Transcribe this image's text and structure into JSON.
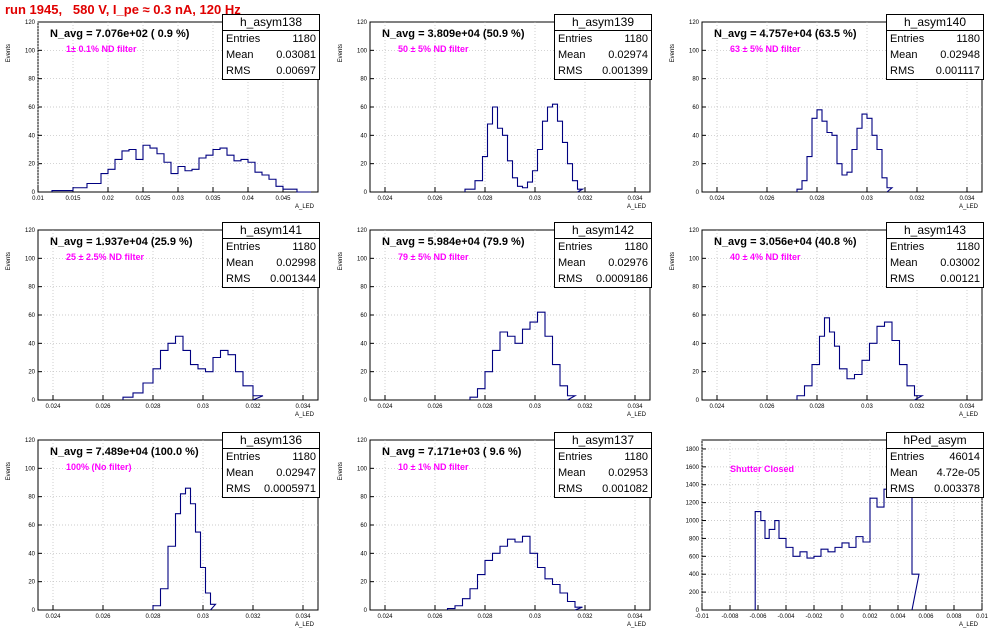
{
  "page": {
    "title": "run 1945,   580 V, I_pe ≈ 0.3 nA, 120 Hz",
    "colors": {
      "title": "#e00000",
      "hist": "#000080",
      "filter": "#ff00ff"
    }
  },
  "chart_data": [
    {
      "type": "histogram",
      "name": "h_asym138",
      "navg": "N_avg = 7.076e+02 ( 0.9 %)",
      "filter": "1± 0.1% ND filter",
      "stats": {
        "entries": "1180",
        "mean": "0.03081",
        "rms": "0.00697"
      },
      "xlim": [
        0.01,
        0.05
      ],
      "ylim": [
        0,
        120
      ],
      "xticks": [
        "0.01",
        "0.015",
        "0.02",
        "0.025",
        "0.03",
        "0.035",
        "0.04",
        "0.045"
      ],
      "xtick_values": [
        0.01,
        0.015,
        0.02,
        0.025,
        0.03,
        0.035,
        0.04,
        0.045
      ],
      "yticks": [
        "0",
        "20",
        "40",
        "60",
        "80",
        "100",
        "120"
      ],
      "ylabel": "Events",
      "xlabel": "A_LED",
      "bins": [
        [
          0.012,
          1
        ],
        [
          0.015,
          3
        ],
        [
          0.017,
          6
        ],
        [
          0.019,
          13
        ],
        [
          0.02,
          16
        ],
        [
          0.021,
          23
        ],
        [
          0.022,
          29
        ],
        [
          0.023,
          30
        ],
        [
          0.024,
          23
        ],
        [
          0.025,
          33
        ],
        [
          0.026,
          31
        ],
        [
          0.027,
          27
        ],
        [
          0.028,
          21
        ],
        [
          0.029,
          13
        ],
        [
          0.03,
          18
        ],
        [
          0.031,
          15
        ],
        [
          0.032,
          16
        ],
        [
          0.033,
          24
        ],
        [
          0.034,
          26
        ],
        [
          0.035,
          30
        ],
        [
          0.036,
          31
        ],
        [
          0.037,
          26
        ],
        [
          0.038,
          22
        ],
        [
          0.039,
          23
        ],
        [
          0.04,
          21
        ],
        [
          0.041,
          14
        ],
        [
          0.042,
          12
        ],
        [
          0.043,
          9
        ],
        [
          0.044,
          4
        ],
        [
          0.045,
          2
        ],
        [
          0.047,
          0
        ]
      ]
    },
    {
      "type": "histogram",
      "name": "h_asym139",
      "navg": "N_avg = 3.809e+04 (50.9 %)",
      "filter": "50 ± 5% ND filter",
      "stats": {
        "entries": "1180",
        "mean": "0.02974",
        "rms": "0.001399"
      },
      "xlim": [
        0.0234,
        0.0346
      ],
      "ylim": [
        0,
        120
      ],
      "xticks": [
        "0.024",
        "0.026",
        "0.028",
        "0.03",
        "0.032",
        "0.034"
      ],
      "xtick_values": [
        0.024,
        0.026,
        0.028,
        0.03,
        0.032,
        0.034
      ],
      "yticks": [
        "0",
        "20",
        "40",
        "60",
        "80",
        "100",
        "120"
      ],
      "ylabel": "Events",
      "xlabel": "A_LED",
      "bins": [
        [
          0.0272,
          2
        ],
        [
          0.0276,
          8
        ],
        [
          0.0279,
          25
        ],
        [
          0.0281,
          48
        ],
        [
          0.0283,
          60
        ],
        [
          0.0285,
          45
        ],
        [
          0.0287,
          40
        ],
        [
          0.0289,
          22
        ],
        [
          0.0291,
          10
        ],
        [
          0.0293,
          4
        ],
        [
          0.0295,
          3
        ],
        [
          0.0297,
          7
        ],
        [
          0.0299,
          15
        ],
        [
          0.0301,
          30
        ],
        [
          0.0303,
          50
        ],
        [
          0.0305,
          60
        ],
        [
          0.0307,
          62
        ],
        [
          0.0309,
          50
        ],
        [
          0.0311,
          35
        ],
        [
          0.0313,
          20
        ],
        [
          0.0315,
          8
        ],
        [
          0.0317,
          2
        ]
      ]
    },
    {
      "type": "histogram",
      "name": "h_asym140",
      "navg": "N_avg = 4.757e+04 (63.5 %)",
      "filter": "63 ± 5% ND filter",
      "stats": {
        "entries": "1180",
        "mean": "0.02948",
        "rms": "0.001117"
      },
      "xlim": [
        0.0234,
        0.0346
      ],
      "ylim": [
        0,
        120
      ],
      "xticks": [
        "0.024",
        "0.026",
        "0.028",
        "0.03",
        "0.032",
        "0.034"
      ],
      "xtick_values": [
        0.024,
        0.026,
        0.028,
        0.03,
        0.032,
        0.034
      ],
      "yticks": [
        "0",
        "20",
        "40",
        "60",
        "80",
        "100",
        "120"
      ],
      "ylabel": "Events",
      "xlabel": "A_LED",
      "bins": [
        [
          0.0272,
          2
        ],
        [
          0.0274,
          8
        ],
        [
          0.0276,
          25
        ],
        [
          0.0278,
          52
        ],
        [
          0.028,
          58
        ],
        [
          0.0282,
          50
        ],
        [
          0.0284,
          42
        ],
        [
          0.0286,
          40
        ],
        [
          0.0288,
          20
        ],
        [
          0.029,
          12
        ],
        [
          0.0292,
          14
        ],
        [
          0.0294,
          30
        ],
        [
          0.0296,
          45
        ],
        [
          0.0298,
          55
        ],
        [
          0.03,
          52
        ],
        [
          0.0302,
          40
        ],
        [
          0.0304,
          30
        ],
        [
          0.0306,
          10
        ],
        [
          0.0308,
          3
        ]
      ]
    },
    {
      "type": "histogram",
      "name": "h_asym141",
      "navg": "N_avg = 1.937e+04 (25.9 %)",
      "filter": "25 ± 2.5% ND filter",
      "stats": {
        "entries": "1180",
        "mean": "0.02998",
        "rms": "0.001344"
      },
      "xlim": [
        0.0234,
        0.0346
      ],
      "ylim": [
        0,
        120
      ],
      "xticks": [
        "0.024",
        "0.026",
        "0.028",
        "0.03",
        "0.032",
        "0.034"
      ],
      "xtick_values": [
        0.024,
        0.026,
        0.028,
        0.03,
        0.032,
        0.034
      ],
      "yticks": [
        "0",
        "20",
        "40",
        "60",
        "80",
        "100",
        "120"
      ],
      "ylabel": "Events",
      "xlabel": "A_LED",
      "bins": [
        [
          0.0268,
          2
        ],
        [
          0.0272,
          5
        ],
        [
          0.0276,
          12
        ],
        [
          0.028,
          22
        ],
        [
          0.0283,
          35
        ],
        [
          0.0286,
          40
        ],
        [
          0.0289,
          45
        ],
        [
          0.0292,
          35
        ],
        [
          0.0295,
          25
        ],
        [
          0.0298,
          22
        ],
        [
          0.0301,
          20
        ],
        [
          0.0304,
          30
        ],
        [
          0.0307,
          35
        ],
        [
          0.031,
          32
        ],
        [
          0.0313,
          20
        ],
        [
          0.0316,
          10
        ],
        [
          0.032,
          3
        ]
      ]
    },
    {
      "type": "histogram",
      "name": "h_asym142",
      "navg": "N_avg = 5.984e+04 (79.9 %)",
      "filter": "79 ± 5% ND filter",
      "stats": {
        "entries": "1180",
        "mean": "0.02976",
        "rms": "0.0009186"
      },
      "xlim": [
        0.0234,
        0.0346
      ],
      "ylim": [
        0,
        120
      ],
      "xticks": [
        "0.024",
        "0.026",
        "0.028",
        "0.03",
        "0.032",
        "0.034"
      ],
      "xtick_values": [
        0.024,
        0.026,
        0.028,
        0.03,
        0.032,
        0.034
      ],
      "yticks": [
        "0",
        "20",
        "40",
        "60",
        "80",
        "100",
        "120"
      ],
      "ylabel": "Events",
      "xlabel": "A_LED",
      "bins": [
        [
          0.0274,
          2
        ],
        [
          0.0277,
          8
        ],
        [
          0.028,
          20
        ],
        [
          0.0283,
          35
        ],
        [
          0.0286,
          48
        ],
        [
          0.0289,
          45
        ],
        [
          0.0292,
          40
        ],
        [
          0.0295,
          50
        ],
        [
          0.0298,
          55
        ],
        [
          0.0301,
          62
        ],
        [
          0.0304,
          45
        ],
        [
          0.0307,
          25
        ],
        [
          0.031,
          10
        ],
        [
          0.0313,
          3
        ]
      ]
    },
    {
      "type": "histogram",
      "name": "h_asym143",
      "navg": "N_avg = 3.056e+04 (40.8 %)",
      "filter": "40 ± 4% ND filter",
      "stats": {
        "entries": "1180",
        "mean": "0.03002",
        "rms": "0.00121"
      },
      "xlim": [
        0.0234,
        0.0346
      ],
      "ylim": [
        0,
        120
      ],
      "xticks": [
        "0.024",
        "0.026",
        "0.028",
        "0.03",
        "0.032",
        "0.034"
      ],
      "xtick_values": [
        0.024,
        0.026,
        0.028,
        0.03,
        0.032,
        0.034
      ],
      "yticks": [
        "0",
        "20",
        "40",
        "60",
        "80",
        "100",
        "120"
      ],
      "ylabel": "Events",
      "xlabel": "A_LED",
      "bins": [
        [
          0.0272,
          3
        ],
        [
          0.0275,
          10
        ],
        [
          0.0278,
          25
        ],
        [
          0.0281,
          45
        ],
        [
          0.0283,
          58
        ],
        [
          0.0285,
          48
        ],
        [
          0.0287,
          38
        ],
        [
          0.0289,
          22
        ],
        [
          0.0292,
          15
        ],
        [
          0.0295,
          18
        ],
        [
          0.0298,
          28
        ],
        [
          0.0301,
          40
        ],
        [
          0.0304,
          52
        ],
        [
          0.0307,
          55
        ],
        [
          0.031,
          42
        ],
        [
          0.0313,
          25
        ],
        [
          0.0316,
          10
        ],
        [
          0.0319,
          3
        ]
      ]
    },
    {
      "type": "histogram",
      "name": "h_asym136",
      "navg": "N_avg = 7.489e+04 (100.0 %)",
      "filter": "100% (No filter)",
      "stats": {
        "entries": "1180",
        "mean": "0.02947",
        "rms": "0.0005971"
      },
      "xlim": [
        0.0234,
        0.0346
      ],
      "ylim": [
        0,
        120
      ],
      "xticks": [
        "0.024",
        "0.026",
        "0.028",
        "0.03",
        "0.032",
        "0.034"
      ],
      "xtick_values": [
        0.024,
        0.026,
        0.028,
        0.03,
        0.032,
        0.034
      ],
      "yticks": [
        "0",
        "20",
        "40",
        "60",
        "80",
        "100",
        "120"
      ],
      "ylabel": "Events",
      "xlabel": "A_LED",
      "bins": [
        [
          0.028,
          3
        ],
        [
          0.0283,
          15
        ],
        [
          0.0286,
          45
        ],
        [
          0.0289,
          68
        ],
        [
          0.0291,
          82
        ],
        [
          0.0293,
          86
        ],
        [
          0.0295,
          75
        ],
        [
          0.0297,
          55
        ],
        [
          0.0299,
          30
        ],
        [
          0.0301,
          12
        ],
        [
          0.0303,
          4
        ]
      ]
    },
    {
      "type": "histogram",
      "name": "h_asym137",
      "navg": "N_avg = 7.171e+03 ( 9.6 %)",
      "filter": "10 ± 1% ND filter",
      "stats": {
        "entries": "1180",
        "mean": "0.02953",
        "rms": "0.001082"
      },
      "xlim": [
        0.0234,
        0.0346
      ],
      "ylim": [
        0,
        120
      ],
      "xticks": [
        "0.024",
        "0.026",
        "0.028",
        "0.03",
        "0.032",
        "0.034"
      ],
      "xtick_values": [
        0.024,
        0.026,
        0.028,
        0.03,
        0.032,
        0.034
      ],
      "yticks": [
        "0",
        "20",
        "40",
        "60",
        "80",
        "100",
        "120"
      ],
      "ylabel": "Events",
      "xlabel": "A_LED",
      "bins": [
        [
          0.0265,
          1
        ],
        [
          0.0268,
          3
        ],
        [
          0.0271,
          8
        ],
        [
          0.0274,
          15
        ],
        [
          0.0277,
          25
        ],
        [
          0.028,
          35
        ],
        [
          0.0283,
          40
        ],
        [
          0.0286,
          45
        ],
        [
          0.0289,
          50
        ],
        [
          0.0292,
          48
        ],
        [
          0.0295,
          52
        ],
        [
          0.0298,
          40
        ],
        [
          0.0301,
          30
        ],
        [
          0.0304,
          22
        ],
        [
          0.0307,
          18
        ],
        [
          0.031,
          12
        ],
        [
          0.0313,
          6
        ],
        [
          0.0316,
          2
        ]
      ]
    },
    {
      "type": "histogram",
      "name": "hPed_asym",
      "navg": "",
      "filter": "Shutter Closed",
      "stats": {
        "entries": "46014",
        "mean": "4.72e-05",
        "rms": "0.003378"
      },
      "xlim": [
        -0.01,
        0.01
      ],
      "ylim": [
        0,
        1900
      ],
      "xticks": [
        "-0.01",
        "-0.008",
        "-0.006",
        "-0.004",
        "-0.002",
        "0",
        "0.002",
        "0.004",
        "0.006",
        "0.008",
        "0.01"
      ],
      "xtick_values": [
        -0.01,
        -0.008,
        -0.006,
        -0.004,
        -0.002,
        0,
        0.002,
        0.004,
        0.006,
        0.008,
        0.01
      ],
      "yticks": [
        "0",
        "200",
        "400",
        "600",
        "800",
        "1000",
        "1200",
        "1400",
        "1600",
        "1800"
      ],
      "ylabel": "",
      "xlabel": "A_LED",
      "bins": [
        [
          -0.0062,
          1100
        ],
        [
          -0.0058,
          1000
        ],
        [
          -0.0055,
          800
        ],
        [
          -0.0052,
          900
        ],
        [
          -0.0048,
          1000
        ],
        [
          -0.0045,
          800
        ],
        [
          -0.004,
          700
        ],
        [
          -0.0035,
          600
        ],
        [
          -0.003,
          650
        ],
        [
          -0.0025,
          580
        ],
        [
          -0.002,
          600
        ],
        [
          -0.0015,
          680
        ],
        [
          -0.001,
          650
        ],
        [
          -0.0005,
          700
        ],
        [
          0.0,
          750
        ],
        [
          0.0005,
          700
        ],
        [
          0.001,
          820
        ],
        [
          0.0015,
          760
        ],
        [
          0.002,
          1250
        ],
        [
          0.0025,
          1150
        ],
        [
          0.003,
          1350
        ],
        [
          0.0035,
          1450
        ],
        [
          0.004,
          1650
        ],
        [
          0.0045,
          1800
        ],
        [
          0.005,
          400
        ]
      ]
    }
  ]
}
